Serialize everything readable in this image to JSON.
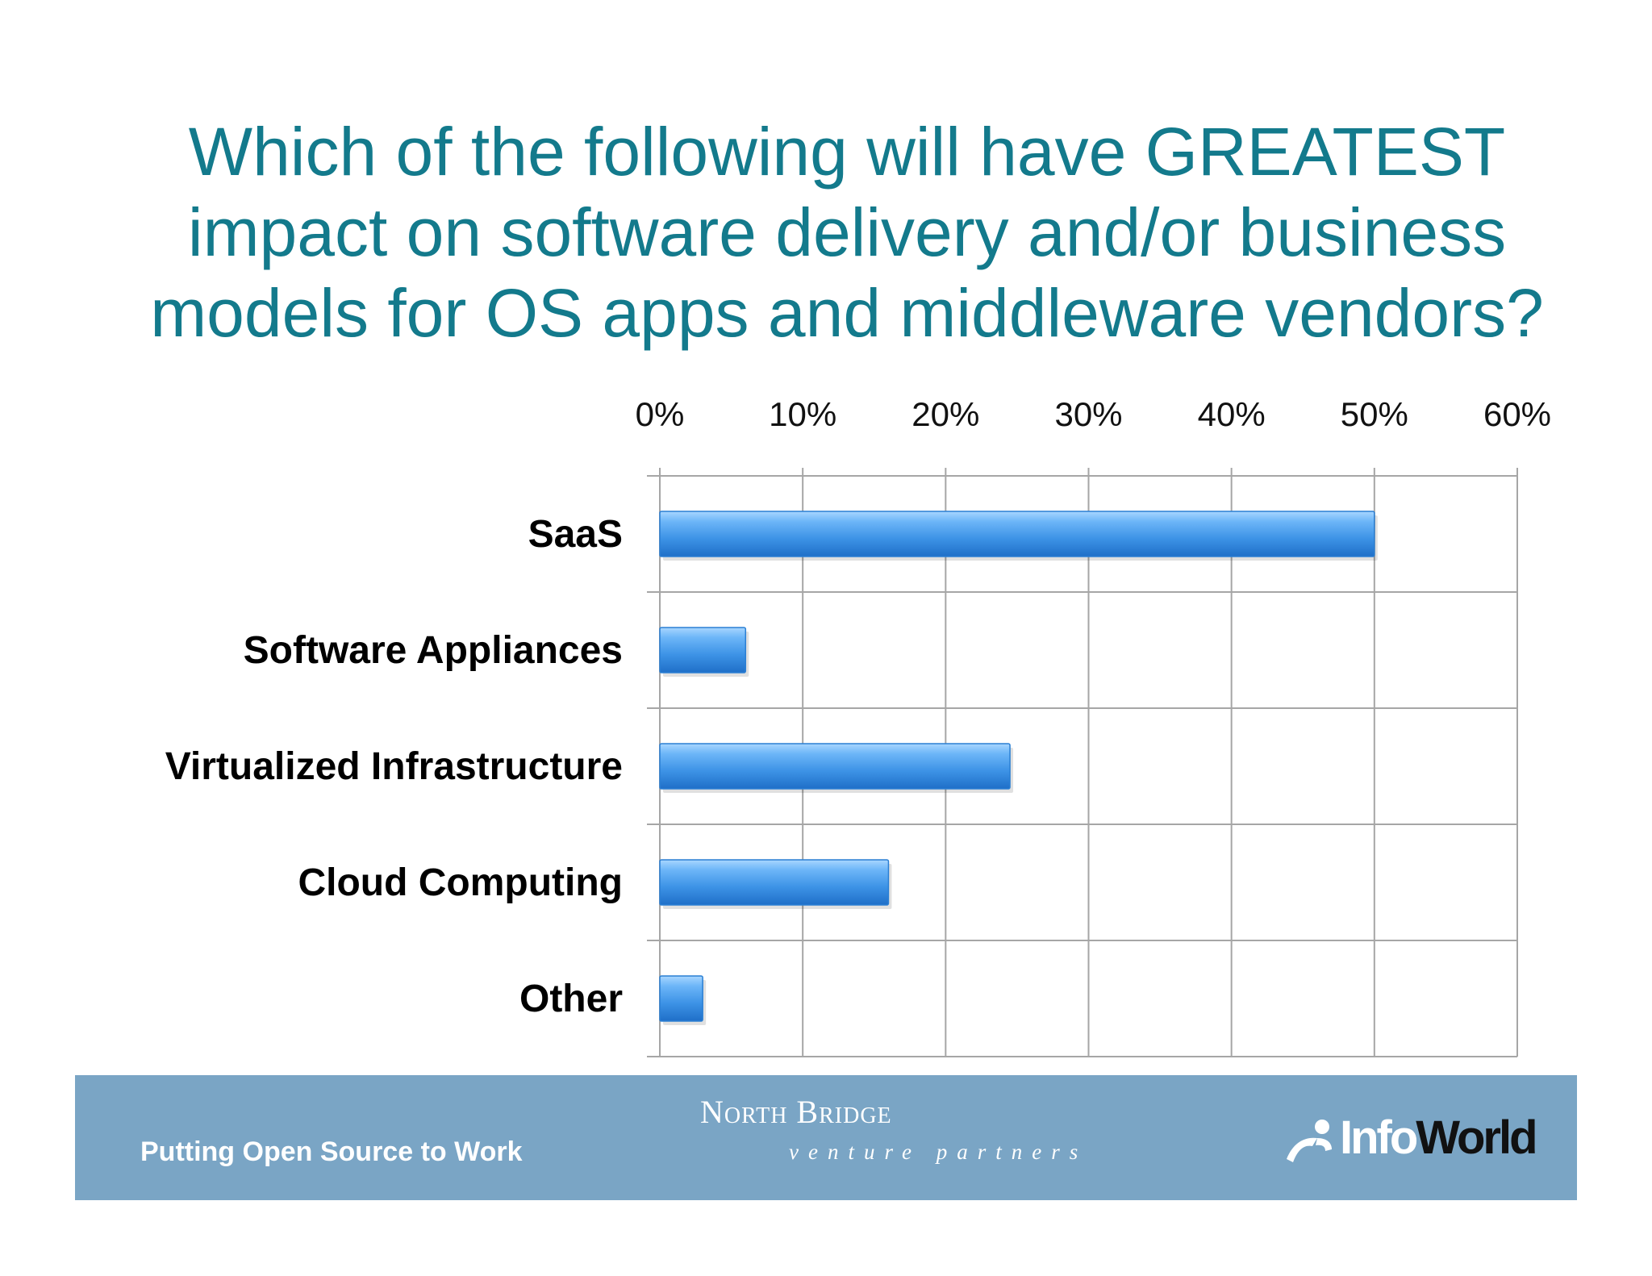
{
  "slide": {
    "title_lines": [
      "Which of the following will have GREATEST",
      "impact on software delivery and/or business",
      "models for OS apps and middleware vendors?"
    ]
  },
  "chart_data": {
    "type": "bar",
    "orientation": "horizontal",
    "title": "Which of the following will have GREATEST impact on software delivery and/or business models for OS apps and middleware vendors?",
    "categories": [
      "SaaS",
      "Software Appliances",
      "Virtualized Infrastructure",
      "Cloud Computing",
      "Other"
    ],
    "values": [
      50,
      6,
      24.5,
      16,
      3
    ],
    "xlim": [
      0,
      60
    ],
    "x_ticks": [
      0,
      10,
      20,
      30,
      40,
      50,
      60
    ],
    "x_tick_labels": [
      "0%",
      "10%",
      "20%",
      "30%",
      "40%",
      "50%",
      "60%"
    ],
    "x_axis_position": "top",
    "grid": true,
    "legend": "none",
    "bar_color": "#3d93e6"
  },
  "footer": {
    "tagline": "Putting Open Source to Work",
    "north_bridge_name": "North Bridge",
    "north_bridge_sub": "venture partners",
    "infoworld_info": "Info",
    "infoworld_world": "World",
    "background_color": "#7aa5c5"
  }
}
